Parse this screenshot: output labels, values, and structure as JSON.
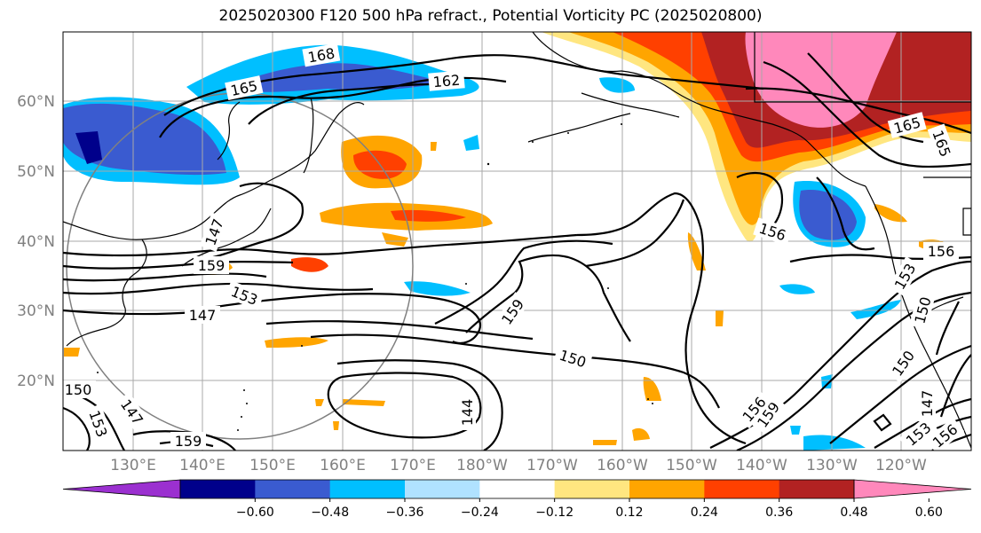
{
  "title": "2025020300 F120 500 hPa refract., Potential Vorticity PC (2025020800)",
  "lat_labels": [
    "60°N",
    "50°N",
    "40°N",
    "30°N",
    "20°N"
  ],
  "lon_labels": [
    "130°E",
    "140°E",
    "150°E",
    "160°E",
    "170°E",
    "180°W",
    "170°W",
    "160°W",
    "150°W",
    "140°W",
    "130°W",
    "120°W"
  ],
  "colorbar": {
    "ticks": [
      "−0.60",
      "−0.48",
      "−0.36",
      "−0.24",
      "−0.12",
      "0.12",
      "0.24",
      "0.36",
      "0.48",
      "0.60"
    ],
    "colors": [
      "#9b30d0",
      "#00008b",
      "#3a5bd0",
      "#00bfff",
      "#b0e2ff",
      "#ffffff",
      "#ffe680",
      "#ffa500",
      "#ff4000",
      "#b22222",
      "#ff88bb"
    ]
  },
  "contour_labels": [
    "165",
    "168",
    "162",
    "165",
    "165",
    "156",
    "156",
    "153",
    "150",
    "159",
    "150",
    "153",
    "147",
    "159",
    "159",
    "156",
    "144",
    "147",
    "150",
    "147",
    "153",
    "159",
    "153",
    "150",
    "156",
    "147"
  ]
}
